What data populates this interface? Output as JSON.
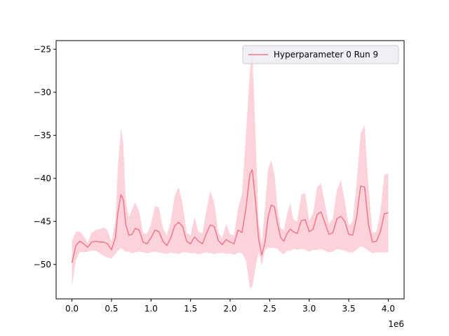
{
  "chart_data": {
    "type": "line",
    "title": "",
    "xlabel": "",
    "ylabel": "",
    "x_offset_text": "1e6",
    "xlim": [
      -0.2,
      4.2
    ],
    "ylim": [
      -54.0,
      -24.0
    ],
    "x_ticks": [
      0.0,
      0.5,
      1.0,
      1.5,
      2.0,
      2.5,
      3.0,
      3.5,
      4.0
    ],
    "x_tick_labels": [
      "0.0",
      "0.5",
      "1.0",
      "1.5",
      "2.0",
      "2.5",
      "3.0",
      "3.5",
      "4.0"
    ],
    "y_ticks": [
      -50,
      -45,
      -40,
      -35,
      -30,
      -25
    ],
    "y_tick_labels": [
      "−50",
      "−45",
      "−40",
      "−35",
      "−30",
      "−25"
    ],
    "grid": false,
    "legend_position": "top-right",
    "line_color": "#f0768b",
    "band_color": "#fcd3db",
    "series": [
      {
        "name": "Hyperparameter 0 Run 9",
        "x": [
          0.0,
          0.05,
          0.1,
          0.15,
          0.2,
          0.25,
          0.3,
          0.35,
          0.4,
          0.45,
          0.5,
          0.55,
          0.58,
          0.62,
          0.65,
          0.68,
          0.72,
          0.76,
          0.8,
          0.85,
          0.9,
          0.95,
          1.0,
          1.05,
          1.1,
          1.15,
          1.2,
          1.25,
          1.3,
          1.35,
          1.4,
          1.45,
          1.5,
          1.55,
          1.6,
          1.65,
          1.7,
          1.75,
          1.8,
          1.85,
          1.9,
          1.95,
          2.0,
          2.05,
          2.1,
          2.15,
          2.2,
          2.25,
          2.28,
          2.32,
          2.36,
          2.4,
          2.44,
          2.48,
          2.52,
          2.56,
          2.6,
          2.64,
          2.68,
          2.72,
          2.76,
          2.8,
          2.85,
          2.9,
          2.95,
          3.0,
          3.05,
          3.1,
          3.15,
          3.2,
          3.25,
          3.3,
          3.35,
          3.4,
          3.45,
          3.5,
          3.55,
          3.6,
          3.65,
          3.7,
          3.75,
          3.8,
          3.85,
          3.9,
          3.95,
          4.0
        ],
        "y": [
          -49.8,
          -47.8,
          -47.3,
          -47.6,
          -48.0,
          -47.4,
          -47.3,
          -47.4,
          -47.4,
          -47.6,
          -48.3,
          -46.9,
          -44.0,
          -41.9,
          -42.5,
          -45.3,
          -46.6,
          -46.5,
          -45.8,
          -46.0,
          -47.4,
          -47.6,
          -46.9,
          -46.0,
          -46.2,
          -47.3,
          -47.8,
          -46.9,
          -45.5,
          -45.1,
          -45.6,
          -47.3,
          -47.6,
          -46.8,
          -47.3,
          -47.6,
          -46.4,
          -45.4,
          -45.6,
          -47.2,
          -47.7,
          -47.1,
          -47.4,
          -47.6,
          -46.0,
          -46.3,
          -43.5,
          -39.5,
          -39.0,
          -42.5,
          -47.0,
          -48.9,
          -47.5,
          -44.5,
          -43.1,
          -43.3,
          -45.3,
          -46.9,
          -47.3,
          -46.4,
          -45.9,
          -46.2,
          -46.4,
          -44.9,
          -44.8,
          -46.2,
          -45.9,
          -44.2,
          -43.9,
          -45.2,
          -46.5,
          -46.3,
          -44.7,
          -44.4,
          -45.0,
          -46.5,
          -46.6,
          -44.5,
          -40.9,
          -41.0,
          -45.4,
          -47.4,
          -47.3,
          -46.2,
          -44.1,
          -44.0
        ],
        "upper": [
          -47.3,
          -46.2,
          -46.2,
          -46.7,
          -47.5,
          -46.3,
          -46.0,
          -45.9,
          -45.7,
          -46.0,
          -47.4,
          -44.8,
          -38.8,
          -34.1,
          -36.0,
          -42.5,
          -44.5,
          -43.6,
          -42.8,
          -43.8,
          -46.4,
          -46.4,
          -45.3,
          -43.2,
          -43.4,
          -45.8,
          -46.6,
          -45.0,
          -42.0,
          -41.0,
          -43.0,
          -46.3,
          -46.6,
          -44.5,
          -46.2,
          -46.4,
          -43.7,
          -41.5,
          -42.8,
          -46.3,
          -46.9,
          -45.3,
          -46.5,
          -46.6,
          -43.5,
          -41.8,
          -35.0,
          -27.5,
          -25.0,
          -34.5,
          -45.0,
          -47.5,
          -43.5,
          -39.0,
          -37.9,
          -39.5,
          -43.5,
          -45.8,
          -46.0,
          -44.2,
          -42.9,
          -44.8,
          -45.0,
          -41.9,
          -41.7,
          -44.9,
          -44.0,
          -41.0,
          -40.6,
          -43.0,
          -45.3,
          -44.6,
          -41.4,
          -40.2,
          -42.6,
          -45.5,
          -45.0,
          -40.5,
          -34.8,
          -33.8,
          -41.0,
          -46.3,
          -46.2,
          -43.9,
          -39.5,
          -39.5
        ],
        "lower": [
          -52.5,
          -49.5,
          -48.5,
          -48.6,
          -48.5,
          -48.4,
          -48.4,
          -48.7,
          -49.0,
          -49.2,
          -49.3,
          -48.8,
          -48.4,
          -48.1,
          -48.3,
          -48.5,
          -48.5,
          -48.7,
          -48.6,
          -48.5,
          -48.6,
          -48.7,
          -48.6,
          -48.5,
          -48.6,
          -48.7,
          -48.8,
          -48.6,
          -48.7,
          -48.8,
          -48.6,
          -48.6,
          -48.7,
          -48.7,
          -48.8,
          -48.7,
          -48.6,
          -48.7,
          -48.8,
          -48.7,
          -48.6,
          -48.8,
          -48.7,
          -48.9,
          -48.6,
          -48.7,
          -49.5,
          -52.8,
          -52.6,
          -50.5,
          -48.5,
          -50.1,
          -48.4,
          -48.0,
          -48.1,
          -48.1,
          -48.2,
          -48.6,
          -48.8,
          -48.4,
          -48.4,
          -48.2,
          -48.3,
          -48.2,
          -48.3,
          -48.5,
          -48.3,
          -48.3,
          -48.2,
          -48.4,
          -48.6,
          -48.5,
          -48.2,
          -48.3,
          -48.4,
          -48.6,
          -48.6,
          -48.3,
          -47.9,
          -48.1,
          -48.4,
          -48.7,
          -48.6,
          -48.6,
          -48.6,
          -48.6
        ]
      }
    ]
  }
}
